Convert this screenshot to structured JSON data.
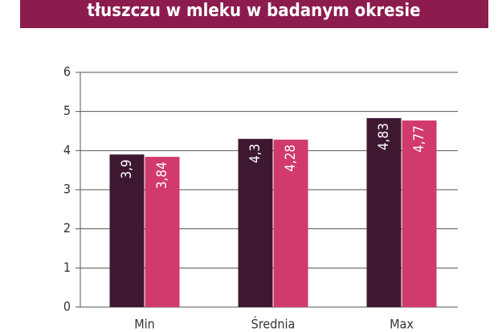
{
  "chart_data": {
    "type": "bar",
    "title": "tłuszczu w mleku w badanym okresie",
    "categories": [
      "Min",
      "Średnia",
      "Max"
    ],
    "series": [
      {
        "color": "#3e1830",
        "values": [
          3.9,
          4.3,
          4.83
        ],
        "value_labels": [
          "3,9",
          "4,3",
          "4,83"
        ]
      },
      {
        "color": "#d13a6c",
        "values": [
          3.84,
          4.28,
          4.77
        ],
        "value_labels": [
          "3,84",
          "4,28",
          "4,77"
        ]
      }
    ],
    "ylim": [
      0,
      6
    ],
    "yticks": [
      0,
      1,
      2,
      3,
      4,
      5,
      6
    ],
    "grid": true,
    "banner_color": "#8c1c4e"
  }
}
